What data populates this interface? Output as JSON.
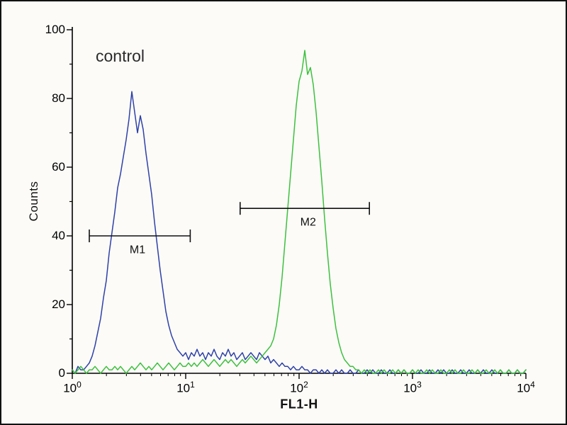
{
  "chart_data": {
    "type": "line",
    "subtype": "flow-cytometry-histogram",
    "title": "control",
    "xlabel": "FL1-H",
    "ylabel": "Counts",
    "x_scale": "log10",
    "xlim": [
      1,
      10000
    ],
    "ylim": [
      0,
      100
    ],
    "x_ticks": [
      {
        "base": "10",
        "exp": "0"
      },
      {
        "base": "10",
        "exp": "1"
      },
      {
        "base": "10",
        "exp": "2"
      },
      {
        "base": "10",
        "exp": "3"
      },
      {
        "base": "10",
        "exp": "4"
      }
    ],
    "y_ticks": [
      0,
      20,
      40,
      60,
      80,
      100
    ],
    "series": [
      {
        "name": "blue",
        "color": "#2e41a8",
        "log_x_start": 0,
        "log_x_step": 0.025,
        "counts": [
          1,
          0,
          2,
          1,
          1,
          2,
          3,
          5,
          8,
          12,
          16,
          22,
          27,
          35,
          41,
          47,
          54,
          58,
          63,
          68,
          74,
          82,
          76,
          70,
          75,
          71,
          64,
          58,
          52,
          44,
          37,
          30,
          24,
          18,
          14,
          11,
          9,
          7,
          6,
          5,
          6,
          4,
          6,
          5,
          7,
          5,
          6,
          4,
          6,
          5,
          7,
          5,
          4,
          6,
          5,
          7,
          5,
          6,
          4,
          5,
          6,
          4,
          5,
          6,
          5,
          4,
          6,
          5,
          4,
          5,
          3,
          4,
          3,
          2,
          3,
          2,
          2,
          1,
          2,
          1,
          1,
          2,
          1,
          1,
          0,
          1,
          1,
          0,
          1,
          0,
          1,
          0,
          0,
          1,
          0,
          1,
          0,
          0,
          1,
          0,
          0,
          1,
          0,
          0,
          1,
          0,
          1,
          0,
          0,
          1,
          0,
          0,
          1,
          0,
          0,
          1,
          0,
          1,
          0,
          0,
          1,
          0,
          0,
          1,
          0,
          0,
          1,
          0,
          0,
          1,
          0,
          1,
          0,
          0,
          1,
          0,
          0,
          1,
          0,
          0,
          1,
          0,
          0,
          1,
          0,
          1,
          0,
          0,
          1,
          0,
          0,
          1,
          0,
          0,
          1,
          0,
          0,
          1,
          0,
          0,
          1
        ]
      },
      {
        "name": "green",
        "color": "#3cc13c",
        "log_x_start": 0,
        "log_x_step": 0.025,
        "counts": [
          1,
          0,
          1,
          2,
          1,
          0,
          1,
          1,
          2,
          1,
          0,
          1,
          2,
          1,
          1,
          2,
          1,
          2,
          1,
          0,
          1,
          2,
          1,
          2,
          3,
          2,
          1,
          2,
          1,
          2,
          3,
          2,
          1,
          2,
          3,
          2,
          1,
          2,
          3,
          2,
          2,
          3,
          2,
          3,
          2,
          3,
          4,
          3,
          2,
          3,
          4,
          3,
          2,
          3,
          4,
          3,
          4,
          3,
          2,
          3,
          4,
          3,
          4,
          5,
          4,
          3,
          4,
          5,
          6,
          7,
          8,
          10,
          14,
          20,
          28,
          38,
          48,
          58,
          68,
          78,
          85,
          88,
          94,
          87,
          89,
          84,
          76,
          66,
          56,
          45,
          35,
          26,
          19,
          13,
          9,
          6,
          4,
          3,
          2,
          2,
          1,
          1,
          0,
          1,
          0,
          1,
          0,
          0,
          1,
          0,
          1,
          0,
          0,
          1,
          0,
          1,
          0,
          1,
          0,
          0,
          1,
          0,
          1,
          0,
          0,
          1,
          0,
          1,
          0,
          0,
          1,
          0,
          0,
          1,
          0,
          1,
          0,
          0,
          1,
          0,
          0,
          1,
          0,
          1,
          0,
          0,
          1,
          0,
          0,
          1,
          0,
          1,
          0,
          0,
          1,
          0,
          0,
          1,
          0,
          0,
          1
        ]
      }
    ],
    "markers": [
      {
        "label": "M1",
        "y": 40,
        "log_x_from": 0.15,
        "log_x_to": 1.04,
        "label_log_x": 0.575,
        "label_y": 35
      },
      {
        "label": "M2",
        "y": 48,
        "log_x_from": 1.48,
        "log_x_to": 2.62,
        "label_log_x": 2.08,
        "label_y": 43
      }
    ],
    "grid": false,
    "legend": "none"
  },
  "colors": {
    "axis": "#000000",
    "marker": "#111111",
    "background": "#fcfbf8",
    "border": "#111111"
  }
}
